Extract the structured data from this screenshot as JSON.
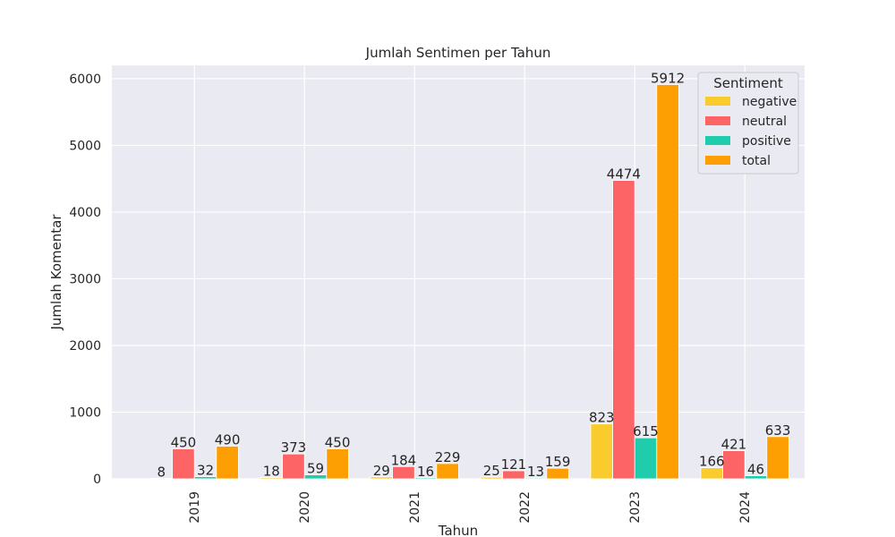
{
  "chart_data": {
    "type": "bar",
    "title": "Jumlah Sentimen per Tahun",
    "xlabel": "Tahun",
    "ylabel": "Jumlah Komentar",
    "categories": [
      "2019",
      "2020",
      "2021",
      "2022",
      "2023",
      "2024"
    ],
    "yticks": [
      0,
      1000,
      2000,
      3000,
      4000,
      5000,
      6000
    ],
    "ylim": [
      0,
      6200
    ],
    "grid": true,
    "legend_title": "Sentiment",
    "legend_position": "top-right",
    "series": [
      {
        "name": "negative",
        "color": "#f9cb2c",
        "values": [
          8,
          18,
          29,
          25,
          823,
          166
        ]
      },
      {
        "name": "neutral",
        "color": "#fc6466",
        "values": [
          450,
          373,
          184,
          121,
          4474,
          421
        ]
      },
      {
        "name": "positive",
        "color": "#1fccab",
        "values": [
          32,
          59,
          16,
          13,
          615,
          46
        ]
      },
      {
        "name": "total",
        "color": "#fd9f02",
        "values": [
          490,
          450,
          229,
          159,
          5912,
          633
        ]
      }
    ]
  }
}
